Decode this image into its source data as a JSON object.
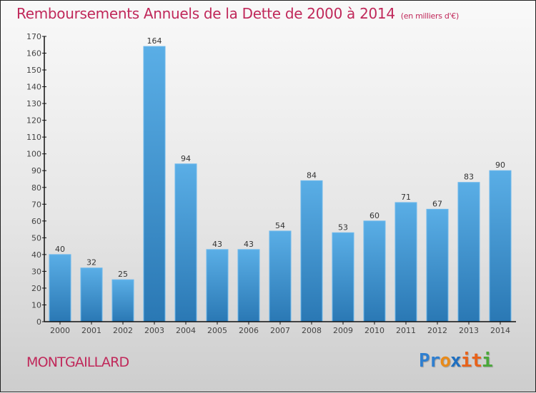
{
  "chart_data": {
    "type": "bar",
    "title": "Remboursements Annuels de la Dette de 2000 à 2014",
    "subtitle": "(en milliers d'€)",
    "xlabel": "",
    "ylabel": "",
    "categories": [
      "2000",
      "2001",
      "2002",
      "2003",
      "2004",
      "2005",
      "2006",
      "2007",
      "2008",
      "2009",
      "2010",
      "2011",
      "2012",
      "2013",
      "2014"
    ],
    "values": [
      40,
      32,
      25,
      164,
      94,
      43,
      43,
      54,
      84,
      53,
      60,
      71,
      67,
      83,
      90
    ],
    "ylim": [
      0,
      170
    ],
    "yticks": [
      0,
      10,
      20,
      30,
      40,
      50,
      60,
      70,
      80,
      90,
      100,
      110,
      120,
      130,
      140,
      150,
      160,
      170
    ],
    "grid": false,
    "legend": "none",
    "data_labels": true,
    "bar_color_top": "#5aaee6",
    "bar_color_bottom": "#2a78b4"
  },
  "footer": {
    "town": "MONTGAILLARD",
    "logo_letters": [
      {
        "ch": "P",
        "color": "#2f7fd0"
      },
      {
        "ch": "r",
        "color": "#2f7fd0"
      },
      {
        "ch": "o",
        "color": "#e88a1a"
      },
      {
        "ch": "x",
        "color": "#1e6fc0"
      },
      {
        "ch": "i",
        "color": "#e8621a"
      },
      {
        "ch": "t",
        "color": "#e8621a"
      },
      {
        "ch": "i",
        "color": "#4aa83a"
      }
    ]
  },
  "colors": {
    "title": "#c0285a",
    "town": "#c0285a"
  }
}
